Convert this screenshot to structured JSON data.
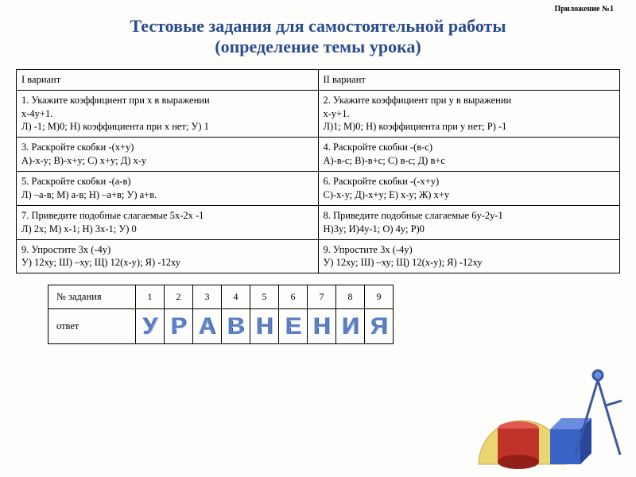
{
  "attachment": "Приложение №1",
  "title_line1": "Тестовые задания для самостоятельной работы",
  "title_line2": "(определение темы урока)",
  "main": {
    "h1": "I вариант",
    "h2": "II вариант",
    "r1c1": "1.    Укажите коэффициент при х  в выражении\n х-4у+1.\nЛ) -1; М)0; Н) коэффициента при х нет; У) 1",
    "r1c2": "2.    Укажите коэффициент при у  в выражении\n х-у+1.\nЛ)1; М)0; Н) коэффициента при у нет; Р) -1",
    "r2c1": "3.   Раскройте скобки  -(х+у)\nА)-х-у;   В)-х+у;   С) х+у;   Д) х-у",
    "r2c2": "4.  Раскройте скобки  -(в-с)\nА)-в-с;   В)-в+с;   С) в-с;   Д) в+с",
    "r3c1": "5. Раскройте скобки  -(а-в)\nЛ) –а-в;   М) а-в;  Н) –а+в;   У) а+в.",
    "r3c2": "6.  Раскройте скобки  -(-х+у)\nС)-х-у;    Д)-х+у;   Е) х-у;   Ж) х+у",
    "r4c1": "7. Приведите подобные слагаемые  5х-2х -1\nЛ) 2х;   М) х-1;  Н) 3х-1;   У) 0",
    "r4c2": "8. Приведите подобные слагаемые  6у-2у-1\nН)3у;   И)4у-1;  О) 4у;  Р)0",
    "r5c1": "9. Упростите 3х (-4у)\nУ) 12ху; Ш) –ху;  Щ) 12(х-у); Я) -12ху",
    "r5c2": "9. Упростите 3х (-4у)\nУ) 12ху; Ш) –ху;  Щ) 12(х-у); Я) -12ху"
  },
  "answer": {
    "label_task": "№ задания",
    "label_answer": "ответ",
    "nums": [
      "1",
      "2",
      "3",
      "4",
      "5",
      "6",
      "7",
      "8",
      "9"
    ],
    "letters": [
      "У",
      "Р",
      "А",
      "В",
      "Н",
      "Е",
      "Н",
      "И",
      "Я"
    ]
  },
  "colors": {
    "title": "#2a4b8d",
    "letter_fill": "#5b7fc7",
    "cylinder": "#c0332b",
    "cube": "#3a63c8",
    "protractor": "#e6d05a",
    "compass": "#395a9e"
  }
}
